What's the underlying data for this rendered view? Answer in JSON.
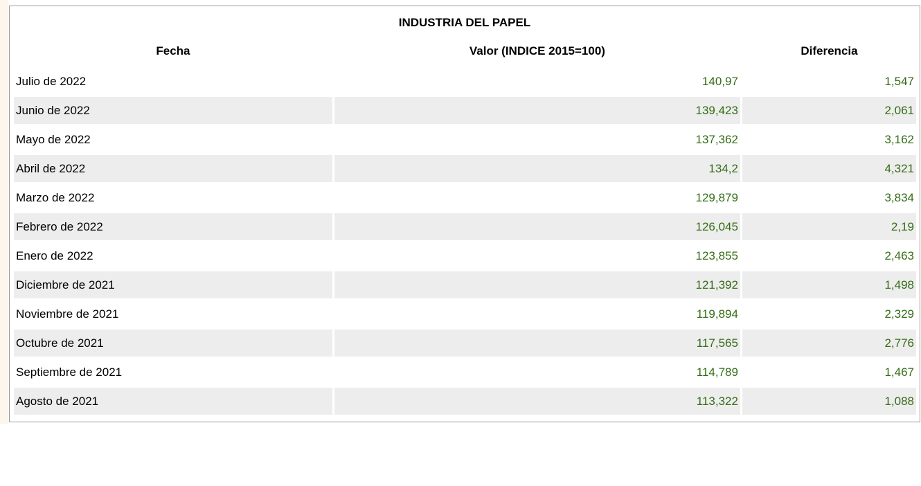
{
  "table": {
    "title": "INDUSTRIA DEL PAPEL",
    "headers": [
      "Fecha",
      "Valor (INDICE 2015=100)",
      "Diferencia"
    ],
    "rows": [
      {
        "fecha": "Julio de 2022",
        "valor": "140,97",
        "diferencia": "1,547"
      },
      {
        "fecha": "Junio de 2022",
        "valor": "139,423",
        "diferencia": "2,061"
      },
      {
        "fecha": "Mayo de 2022",
        "valor": "137,362",
        "diferencia": "3,162"
      },
      {
        "fecha": "Abril de 2022",
        "valor": "134,2",
        "diferencia": "4,321"
      },
      {
        "fecha": "Marzo de 2022",
        "valor": "129,879",
        "diferencia": "3,834"
      },
      {
        "fecha": "Febrero de 2022",
        "valor": "126,045",
        "diferencia": "2,19"
      },
      {
        "fecha": "Enero de 2022",
        "valor": "123,855",
        "diferencia": "2,463"
      },
      {
        "fecha": "Diciembre de 2021",
        "valor": "121,392",
        "diferencia": "1,498"
      },
      {
        "fecha": "Noviembre de 2021",
        "valor": "119,894",
        "diferencia": "2,329"
      },
      {
        "fecha": "Octubre de 2021",
        "valor": "117,565",
        "diferencia": "2,776"
      },
      {
        "fecha": "Septiembre de 2021",
        "valor": "114,789",
        "diferencia": "1,467"
      },
      {
        "fecha": "Agosto de 2021",
        "valor": "113,322",
        "diferencia": "1,088"
      }
    ]
  },
  "colors": {
    "number_text": "#336d14",
    "row_shade": "#ededed",
    "panel_border": "#9a9a9a"
  }
}
